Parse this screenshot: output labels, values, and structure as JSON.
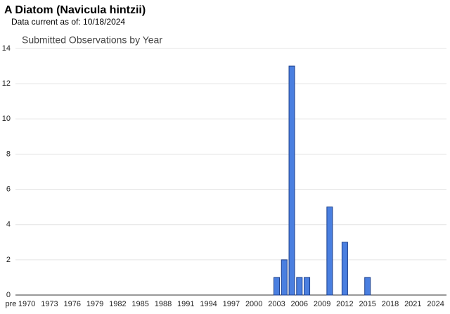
{
  "header": {
    "title": "A Diatom   (Navicula hintzii)",
    "subtitle": "Data current as of: 10/18/2024"
  },
  "chart_data": {
    "type": "bar",
    "title": "Submitted Observations by Year",
    "categories": [
      "pre",
      "1970",
      null,
      null,
      "1973",
      null,
      null,
      "1976",
      null,
      null,
      "1979",
      null,
      null,
      "1982",
      null,
      null,
      "1985",
      null,
      null,
      "1988",
      null,
      null,
      "1991",
      null,
      null,
      "1994",
      null,
      null,
      "1997",
      null,
      null,
      "2000",
      null,
      null,
      "2003",
      null,
      null,
      "2006",
      null,
      null,
      "2009",
      null,
      null,
      "2012",
      null,
      null,
      "2015",
      null,
      null,
      "2018",
      null,
      null,
      "2021",
      null,
      null,
      "2024"
    ],
    "values": [
      0,
      0,
      0,
      0,
      0,
      0,
      0,
      0,
      0,
      0,
      0,
      0,
      0,
      0,
      0,
      0,
      0,
      0,
      0,
      0,
      0,
      0,
      0,
      0,
      0,
      0,
      0,
      0,
      0,
      0,
      0,
      0,
      0,
      0,
      1,
      2,
      13,
      1,
      1,
      0,
      0,
      5,
      0,
      3,
      0,
      0,
      1,
      0,
      0,
      0,
      0,
      0,
      0,
      0,
      0,
      0
    ],
    "color": "#4a7fe0",
    "ylim": [
      0,
      14
    ],
    "yticks": [
      0,
      2,
      4,
      6,
      8,
      10,
      12,
      14
    ],
    "grid": true
  }
}
